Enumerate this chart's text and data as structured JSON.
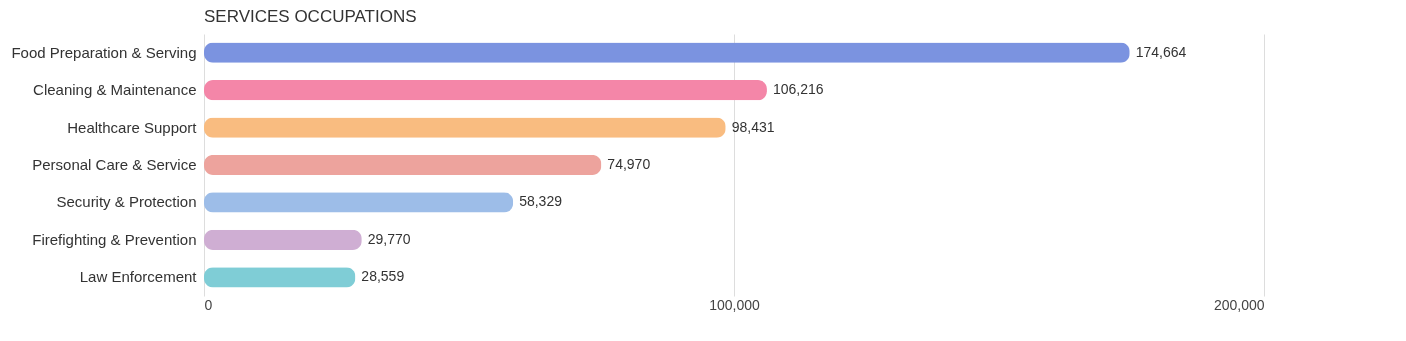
{
  "chart_data": {
    "type": "bar",
    "title": "SERVICES OCCUPATIONS",
    "orientation": "horizontal",
    "categories": [
      "Food Preparation & Serving",
      "Cleaning & Maintenance",
      "Healthcare Support",
      "Personal Care & Service",
      "Security & Protection",
      "Firefighting & Prevention",
      "Law Enforcement"
    ],
    "values": [
      174664,
      106216,
      98431,
      74970,
      58329,
      29770,
      28559
    ],
    "colors": [
      "#7b93e0",
      "#f486a8",
      "#f9bc80",
      "#eda39d",
      "#9dbde8",
      "#cfaed3",
      "#7fcdd6"
    ],
    "value_labels": [
      "174,664",
      "106,216",
      "98,431",
      "74,970",
      "58,329",
      "29,770",
      "28,559"
    ],
    "xlim": [
      0,
      200000
    ],
    "xticks": [
      0,
      {
        "value": 100000,
        "label": "100,000"
      },
      {
        "value": 200000,
        "label": "200,000"
      }
    ],
    "grid": "x"
  }
}
